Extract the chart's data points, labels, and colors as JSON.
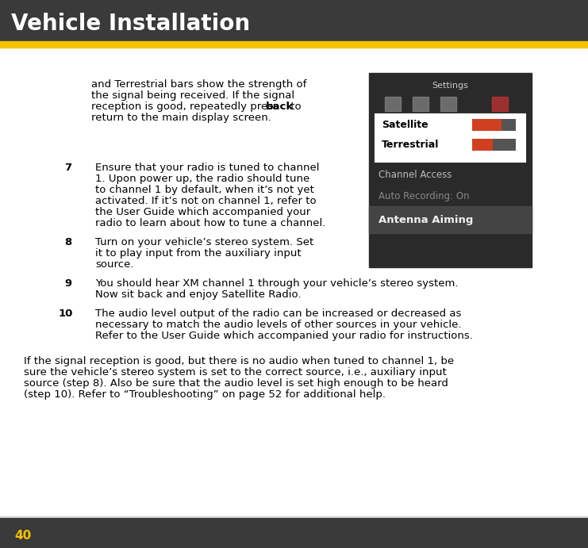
{
  "title": "Vehicle Installation",
  "page_number": "40",
  "header_bg": "#3a3a3a",
  "header_text_color": "#ffffff",
  "gold_bar_color": "#f5c400",
  "footer_bg": "#3a3a3a",
  "footer_text_color": "#f5c400",
  "body_bg": "#ffffff",
  "body_text_color": "#000000",
  "intro_text": "and Terrestrial bars show the strength of\nthe signal being received. If the signal\nreception is good, repeatedly press **back** to\nreturn to the main display screen.",
  "items": [
    {
      "number": "7",
      "text": "Ensure that your radio is tuned to channel\n1. Upon power up, the radio should tune\nto channel 1 by default, when it’s not yet\nactivated. If it’s not on channel 1, refer to\nthe User Guide which accompanied your\nradio to learn about how to tune a channel."
    },
    {
      "number": "8",
      "text": "Turn on your vehicle’s stereo system. Set\nit to play input from the auxiliary input\nsource."
    },
    {
      "number": "9",
      "text": "You should hear XM channel 1 through your vehicle’s stereo system.\nNow sit back and enjoy Satellite Radio."
    },
    {
      "number": "10",
      "text": "The audio level output of the radio can be increased or decreased as\nnecessary to match the audio levels of other sources in your vehicle.\nRefer to the User Guide which accompanied your radio for instructions."
    }
  ],
  "footer_note": "If the signal reception is good, but there is no audio when tuned to channel 1, be\nsure the vehicle’s stereo system is set to the correct source, i.e., auxiliary input\nsource (step 8). Also be sure that the audio level is set high enough to be heard\n(step 10). Refer to “Troubleshooting” on page 52 for additional help.",
  "screen_title": "Settings",
  "screen_items": [
    "Satellite",
    "Terrestrial",
    "Channel Access",
    "Auto Recording: On",
    "Antenna Aiming"
  ],
  "screen_bg": "#2a2a2a",
  "screen_highlight_bg": "#ffffff",
  "screen_title_color": "#cccccc",
  "screen_item_color": "#ffffff",
  "screen_bar_color1": "#e05030",
  "screen_bar_color2": "#555555",
  "screen_selected_text": "#000000"
}
